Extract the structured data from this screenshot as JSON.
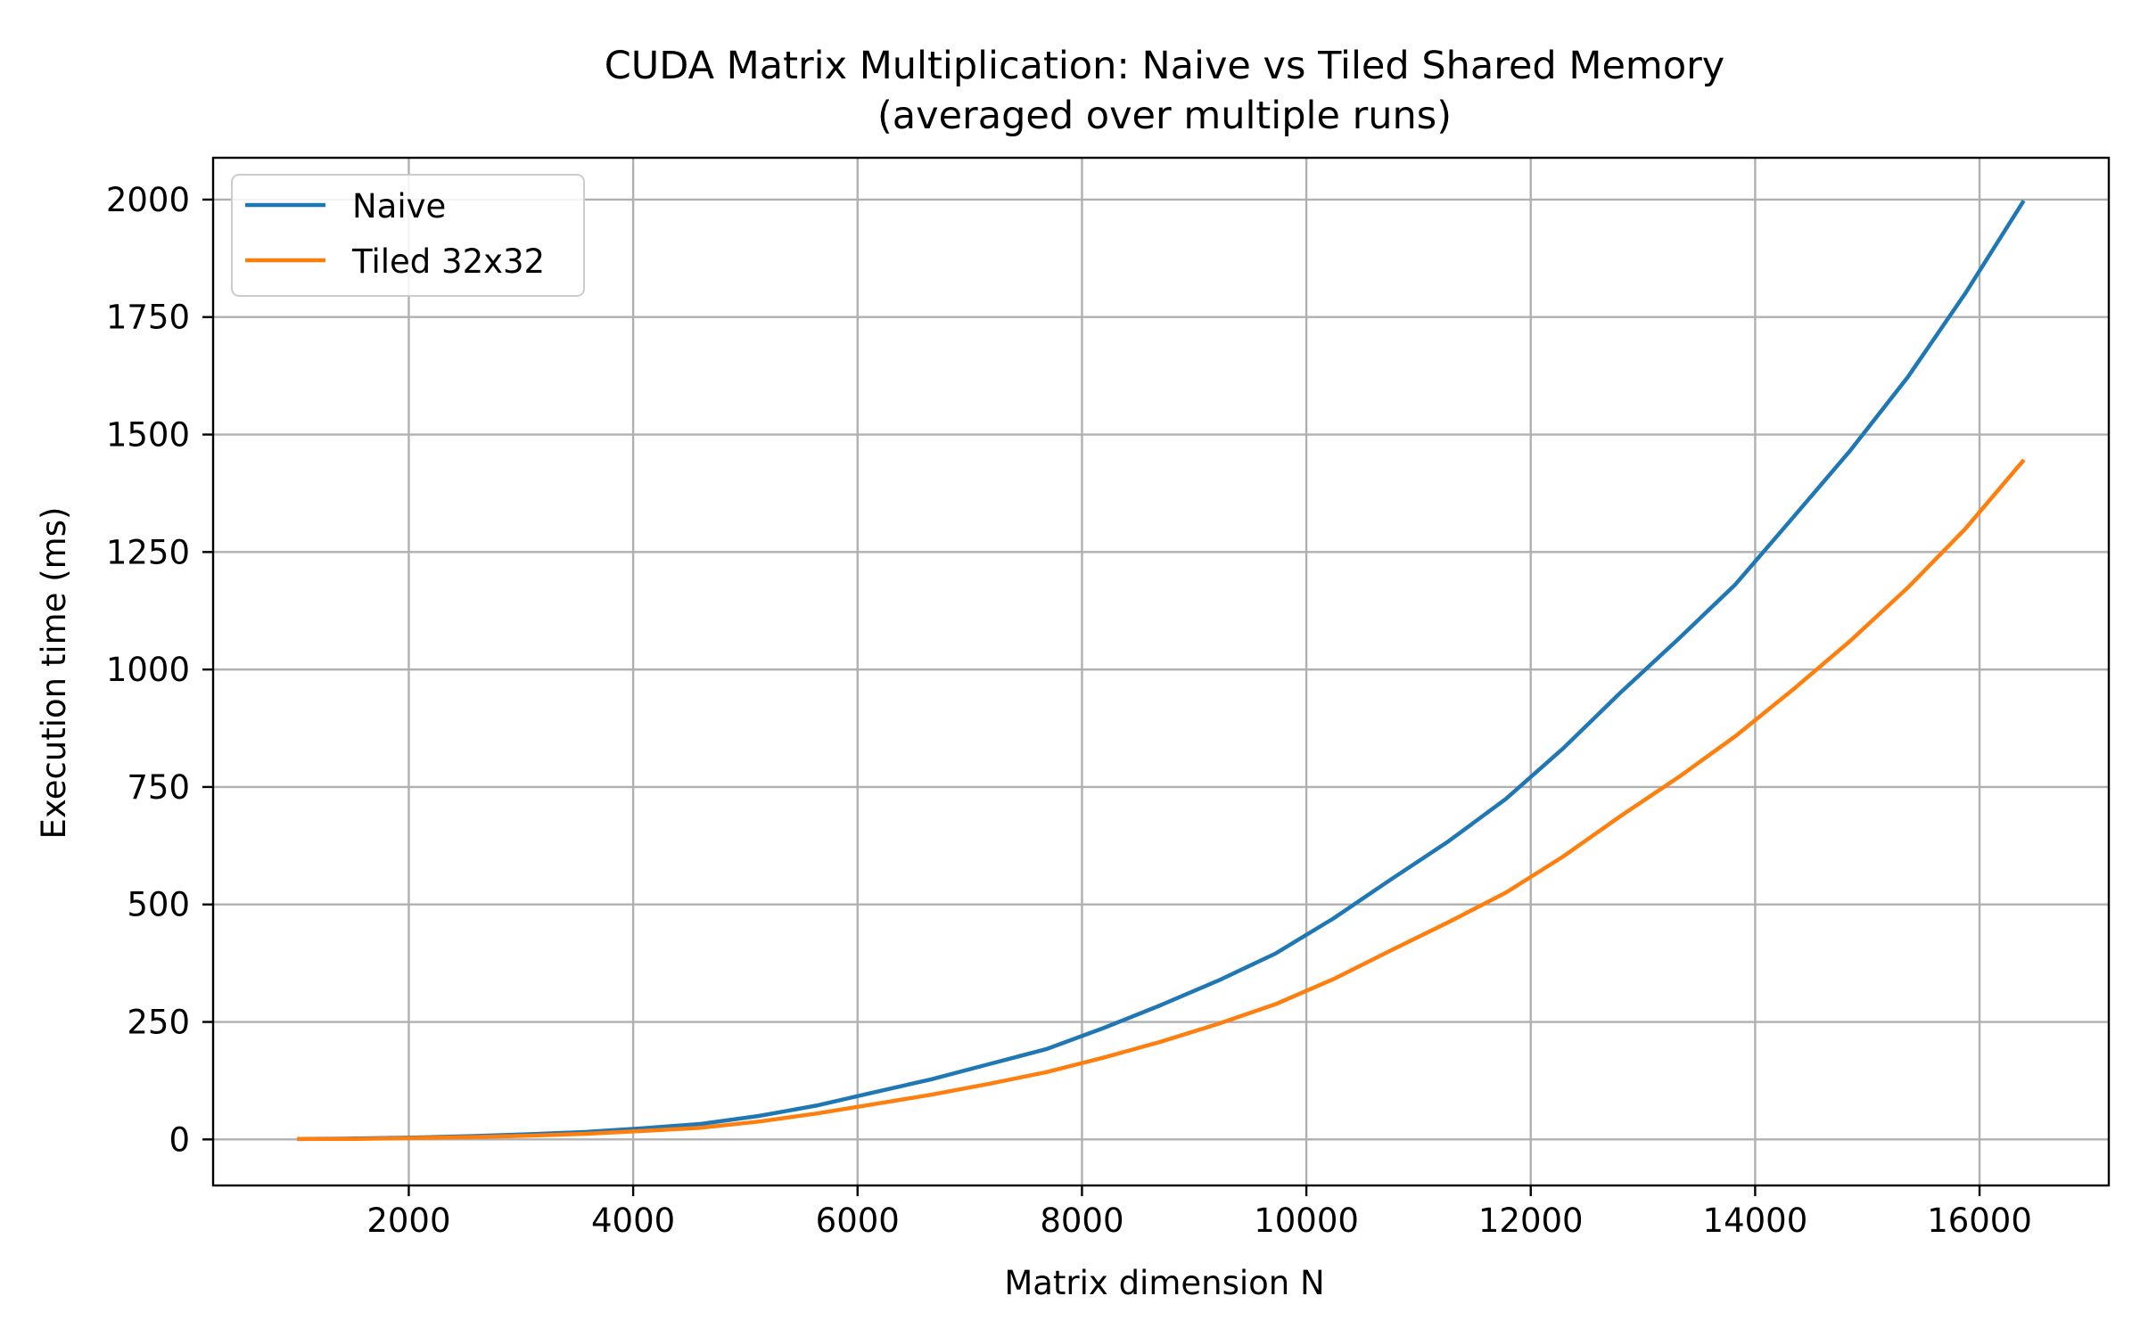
{
  "chart_data": {
    "type": "line",
    "title": "CUDA Matrix Multiplication: Naive vs Tiled Shared Memory",
    "subtitle": "(averaged over multiple runs)",
    "xlabel": "Matrix dimension N",
    "ylabel": "Execution time (ms)",
    "xlim": [
      256,
      17152
    ],
    "ylim": [
      -98,
      2089
    ],
    "xticks": [
      2000,
      4000,
      6000,
      8000,
      10000,
      12000,
      14000,
      16000
    ],
    "yticks": [
      0,
      250,
      500,
      750,
      1000,
      1250,
      1500,
      1750,
      2000
    ],
    "grid": true,
    "legend_position": "top-left",
    "x": [
      1024,
      1536,
      2048,
      2560,
      3072,
      3584,
      4096,
      4608,
      5120,
      5632,
      6144,
      6656,
      7168,
      7680,
      8192,
      8704,
      9216,
      9728,
      10240,
      10752,
      11264,
      11776,
      12288,
      12800,
      13312,
      13824,
      14336,
      14848,
      15360,
      15872,
      16384
    ],
    "series": [
      {
        "name": "Naive",
        "color": "#1f77b4",
        "values": [
          1,
          2,
          4,
          7,
          11,
          16,
          24,
          33,
          50,
          72,
          100,
          128,
          160,
          192,
          237,
          286,
          338,
          396,
          470,
          553,
          634,
          724,
          832,
          951,
          1064,
          1181,
          1323,
          1466,
          1622,
          1800,
          1994
        ]
      },
      {
        "name": "Tiled 32x32",
        "color": "#ff7f0e",
        "values": [
          1,
          1,
          3,
          5,
          8,
          12,
          18,
          25,
          38,
          55,
          75,
          95,
          118,
          143,
          174,
          208,
          246,
          288,
          341,
          402,
          462,
          525,
          602,
          688,
          770,
          858,
          957,
          1061,
          1174,
          1299,
          1443
        ]
      }
    ]
  }
}
